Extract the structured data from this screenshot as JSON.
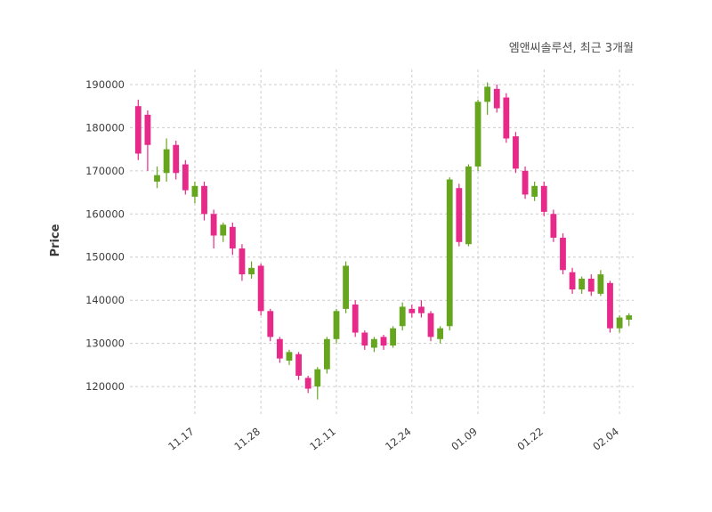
{
  "chart_data": {
    "type": "candlestick",
    "title": "엠앤씨솔루션, 최근 3개월",
    "ylabel": "Price",
    "ylim": [
      113000,
      193500
    ],
    "y_ticks": [
      120000,
      130000,
      140000,
      150000,
      160000,
      170000,
      180000,
      190000
    ],
    "x_tick_labels": [
      "11.17",
      "11.28",
      "12.11",
      "12.24",
      "01.09",
      "01.22",
      "02.04"
    ],
    "x_tick_indices": [
      6,
      13,
      21,
      29,
      36,
      43,
      51
    ],
    "up_color": "#66a61e",
    "down_color": "#e7298a",
    "grid": true,
    "legend": "none",
    "candles_ohlc": [
      [
        185000,
        186500,
        172500,
        174000
      ],
      [
        183000,
        184000,
        170000,
        176000
      ],
      [
        167500,
        171000,
        166000,
        169000
      ],
      [
        169500,
        177500,
        167500,
        175000
      ],
      [
        176000,
        177000,
        168000,
        169500
      ],
      [
        171500,
        172500,
        164500,
        165500
      ],
      [
        164000,
        167500,
        162500,
        166500
      ],
      [
        166500,
        167500,
        158500,
        160000
      ],
      [
        160000,
        161000,
        152000,
        155000
      ],
      [
        155000,
        158000,
        153500,
        157500
      ],
      [
        157000,
        158000,
        150500,
        152000
      ],
      [
        152000,
        153000,
        144500,
        146000
      ],
      [
        146000,
        149000,
        145000,
        147500
      ],
      [
        148000,
        148500,
        136500,
        137500
      ],
      [
        137500,
        138000,
        130500,
        131500
      ],
      [
        131000,
        131500,
        125500,
        126500
      ],
      [
        126000,
        128500,
        125000,
        128000
      ],
      [
        127500,
        128000,
        121500,
        122500
      ],
      [
        122000,
        122500,
        118500,
        119500
      ],
      [
        120000,
        124500,
        117000,
        124000
      ],
      [
        124000,
        131500,
        123000,
        131000
      ],
      [
        131000,
        138000,
        130000,
        137500
      ],
      [
        138000,
        149000,
        137000,
        148000
      ],
      [
        139000,
        140000,
        131500,
        132500
      ],
      [
        132500,
        133000,
        128500,
        129500
      ],
      [
        129000,
        131500,
        128000,
        131000
      ],
      [
        131500,
        132000,
        128500,
        129500
      ],
      [
        129500,
        134000,
        129000,
        133500
      ],
      [
        134000,
        139500,
        133000,
        138500
      ],
      [
        138000,
        139000,
        136000,
        137000
      ],
      [
        138500,
        140000,
        136000,
        137000
      ],
      [
        137000,
        137500,
        130500,
        131500
      ],
      [
        131000,
        134000,
        130000,
        133500
      ],
      [
        134000,
        168500,
        133000,
        168000
      ],
      [
        166000,
        167000,
        152500,
        153500
      ],
      [
        153000,
        171500,
        152500,
        171000
      ],
      [
        171000,
        186500,
        170000,
        186000
      ],
      [
        186000,
        190500,
        183000,
        189500
      ],
      [
        189000,
        190000,
        183500,
        184500
      ],
      [
        187000,
        188000,
        176500,
        177500
      ],
      [
        178000,
        179000,
        169500,
        170500
      ],
      [
        170000,
        171000,
        163500,
        164500
      ],
      [
        164000,
        167500,
        163000,
        166500
      ],
      [
        166500,
        167500,
        159500,
        160500
      ],
      [
        160000,
        161000,
        153500,
        154500
      ],
      [
        154500,
        155500,
        146000,
        147000
      ],
      [
        146500,
        147500,
        141500,
        142500
      ],
      [
        142500,
        145500,
        141500,
        145000
      ],
      [
        145000,
        146000,
        141000,
        142000
      ],
      [
        141500,
        147000,
        141000,
        146000
      ],
      [
        144000,
        144500,
        132500,
        133500
      ],
      [
        133500,
        136500,
        132500,
        136000
      ],
      [
        135500,
        137000,
        134000,
        136500
      ]
    ]
  }
}
